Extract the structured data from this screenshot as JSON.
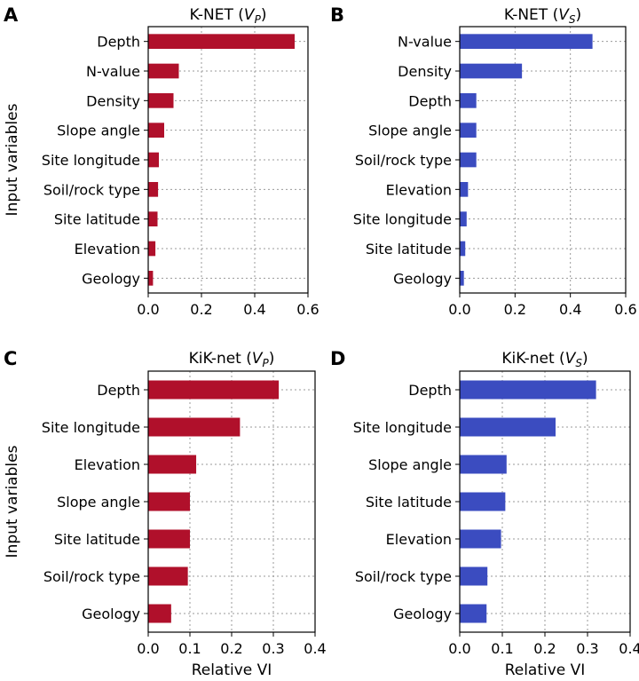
{
  "chart_data": [
    {
      "panel": "A",
      "type": "bar",
      "orientation": "horizontal",
      "title": "K-NET (V_P)",
      "title_main": "K-NET (",
      "title_var": "V",
      "title_sub": "P",
      "title_close": ")",
      "xlabel": "",
      "ylabel": "Input variables",
      "xlim": [
        0,
        0.6
      ],
      "xticks": [
        "0.0",
        "0.2",
        "0.4",
        "0.6"
      ],
      "xtick_values": [
        0,
        0.2,
        0.4,
        0.6
      ],
      "color": "#b0102b",
      "categories": [
        "Depth",
        "N-value",
        "Density",
        "Slope angle",
        "Site longitude",
        "Soil/rock type",
        "Site latitude",
        "Elevation",
        "Geology"
      ],
      "values": [
        0.55,
        0.115,
        0.095,
        0.06,
        0.04,
        0.037,
        0.035,
        0.027,
        0.018
      ]
    },
    {
      "panel": "B",
      "type": "bar",
      "orientation": "horizontal",
      "title": "K-NET (V_S)",
      "title_main": "K-NET (",
      "title_var": "V",
      "title_sub": "S",
      "title_close": ")",
      "xlabel": "",
      "ylabel": "",
      "xlim": [
        0,
        0.6
      ],
      "xticks": [
        "0.0",
        "0.2",
        "0.4",
        "0.6"
      ],
      "xtick_values": [
        0,
        0.2,
        0.4,
        0.6
      ],
      "color": "#3b4cc0",
      "categories": [
        "N-value",
        "Density",
        "Depth",
        "Slope angle",
        "Soil/rock type",
        "Elevation",
        "Site longitude",
        "Site latitude",
        "Geology"
      ],
      "values": [
        0.48,
        0.225,
        0.06,
        0.06,
        0.06,
        0.03,
        0.025,
        0.02,
        0.015
      ]
    },
    {
      "panel": "C",
      "type": "bar",
      "orientation": "horizontal",
      "title": "KiK-net (V_P)",
      "title_main": "KiK-net (",
      "title_var": "V",
      "title_sub": "P",
      "title_close": ")",
      "xlabel": "Relative VI",
      "ylabel": "Input variables",
      "xlim": [
        0,
        0.4
      ],
      "xticks": [
        "0.0",
        "0.1",
        "0.2",
        "0.3",
        "0.4"
      ],
      "xtick_values": [
        0,
        0.1,
        0.2,
        0.3,
        0.4
      ],
      "color": "#b0102b",
      "categories": [
        "Depth",
        "Site longitude",
        "Elevation",
        "Slope angle",
        "Site latitude",
        "Soil/rock type",
        "Geology"
      ],
      "values": [
        0.313,
        0.22,
        0.115,
        0.1,
        0.1,
        0.095,
        0.055
      ]
    },
    {
      "panel": "D",
      "type": "bar",
      "orientation": "horizontal",
      "title": "KiK-net (V_S)",
      "title_main": "KiK-net (",
      "title_var": "V",
      "title_sub": "S",
      "title_close": ")",
      "xlabel": "Relative VI",
      "ylabel": "",
      "xlim": [
        0,
        0.4
      ],
      "xticks": [
        "0.0",
        "0.1",
        "0.2",
        "0.3",
        "0.4"
      ],
      "xtick_values": [
        0,
        0.1,
        0.2,
        0.3,
        0.4
      ],
      "color": "#3b4cc0",
      "categories": [
        "Depth",
        "Site longitude",
        "Slope angle",
        "Site latitude",
        "Elevation",
        "Soil/rock type",
        "Geology"
      ],
      "values": [
        0.32,
        0.225,
        0.11,
        0.107,
        0.097,
        0.065,
        0.063
      ]
    }
  ]
}
